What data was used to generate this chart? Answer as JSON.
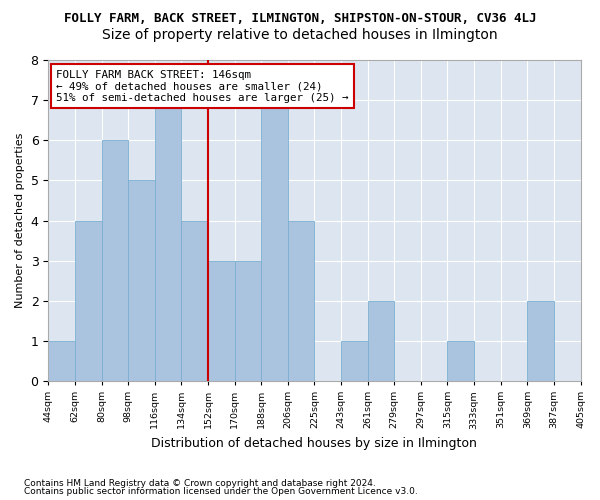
{
  "title": "FOLLY FARM, BACK STREET, ILMINGTON, SHIPSTON-ON-STOUR, CV36 4LJ",
  "subtitle": "Size of property relative to detached houses in Ilmington",
  "xlabel": "Distribution of detached houses by size in Ilmington",
  "ylabel": "Number of detached properties",
  "footer1": "Contains HM Land Registry data © Crown copyright and database right 2024.",
  "footer2": "Contains public sector information licensed under the Open Government Licence v3.0.",
  "tick_labels": [
    "44sqm",
    "62sqm",
    "80sqm",
    "98sqm",
    "116sqm",
    "134sqm",
    "152sqm",
    "170sqm",
    "188sqm",
    "206sqm",
    "225sqm",
    "243sqm",
    "261sqm",
    "279sqm",
    "297sqm",
    "315sqm",
    "333sqm",
    "351sqm",
    "369sqm",
    "387sqm",
    "405sqm"
  ],
  "bar_values": [
    1,
    4,
    6,
    5,
    7,
    4,
    3,
    3,
    7,
    4,
    0,
    1,
    2,
    0,
    0,
    1,
    0,
    0,
    2,
    0
  ],
  "bar_color": "#aac4e0",
  "bar_edge_color": "#7aaed0",
  "property_line_x": 5.5,
  "property_label": "FOLLY FARM BACK STREET: 146sqm",
  "annotation_line1": "← 49% of detached houses are smaller (24)",
  "annotation_line2": "51% of semi-detached houses are larger (25) →",
  "annotation_box_color": "#ffffff",
  "annotation_box_edge": "#cc0000",
  "line_color": "#cc0000",
  "ylim": [
    0,
    8
  ],
  "yticks": [
    0,
    1,
    2,
    3,
    4,
    5,
    6,
    7,
    8
  ],
  "background_color": "#dde6f0",
  "title_fontsize": 9,
  "subtitle_fontsize": 10
}
